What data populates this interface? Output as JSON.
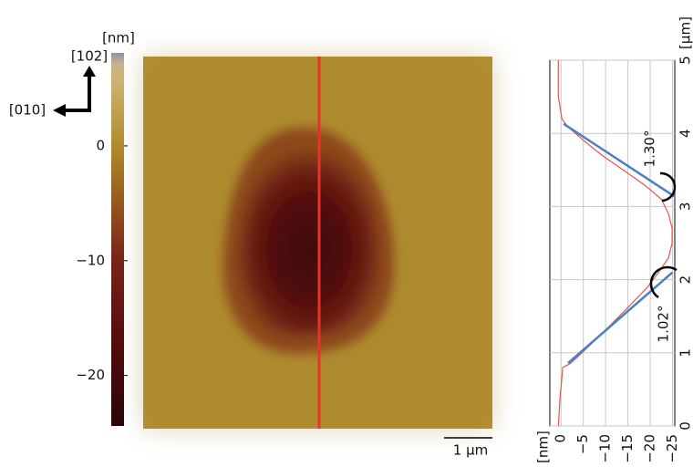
{
  "figure": {
    "directions": [
      "[102]",
      "[010]"
    ],
    "scale_bar": "1 µm"
  },
  "chart_data": [
    {
      "type": "colorbar",
      "label": "[nm]",
      "ylim": [
        -24.4,
        8.1
      ],
      "yticks": [
        0,
        {
          "value": -10,
          "label": "−10"
        },
        {
          "value": -20,
          "label": "−20"
        }
      ]
    },
    {
      "type": "line",
      "x_label": "[µm]",
      "y_label": "[nm]",
      "xlim": [
        0,
        5
      ],
      "xticks": [
        0,
        1,
        2,
        3,
        4,
        5
      ],
      "ylim": [
        2.5,
        -25.5
      ],
      "yticks": [
        0,
        {
          "value": -5,
          "label": "−5"
        },
        {
          "value": -10,
          "label": "−10"
        },
        {
          "value": -15,
          "label": "−15"
        },
        {
          "value": -20,
          "label": "−20"
        },
        {
          "value": -25,
          "label": "−25"
        }
      ],
      "grid": true,
      "series": [
        {
          "color": "#e0554f",
          "x": [
            0,
            0.4,
            0.8,
            0.85,
            1.0,
            1.3,
            1.6,
            1.9,
            2.1,
            2.3,
            2.5,
            2.7,
            2.9,
            3.1,
            3.3,
            3.5,
            3.7,
            3.9,
            4.1,
            4.2,
            4.5,
            5
          ],
          "values": [
            0.6,
            0.2,
            -0.4,
            -2,
            -4.7,
            -9.8,
            -14.7,
            -19.4,
            -21.9,
            -24.1,
            -24.9,
            -24.9,
            -24.1,
            -22.5,
            -18.6,
            -13.9,
            -9.2,
            -5.1,
            -1.4,
            -0.2,
            0.6,
            0.6
          ]
        },
        {
          "color": "#4a7fc1",
          "x": [
            0.86,
            2.1
          ],
          "values": [
            -1.6,
            -25
          ]
        },
        {
          "color": "#4a7fc1",
          "x": [
            4.13,
            3.13
          ],
          "values": [
            -0.6,
            -25.6
          ]
        }
      ],
      "annotations": [
        "1.30°",
        "1.02°"
      ]
    }
  ]
}
